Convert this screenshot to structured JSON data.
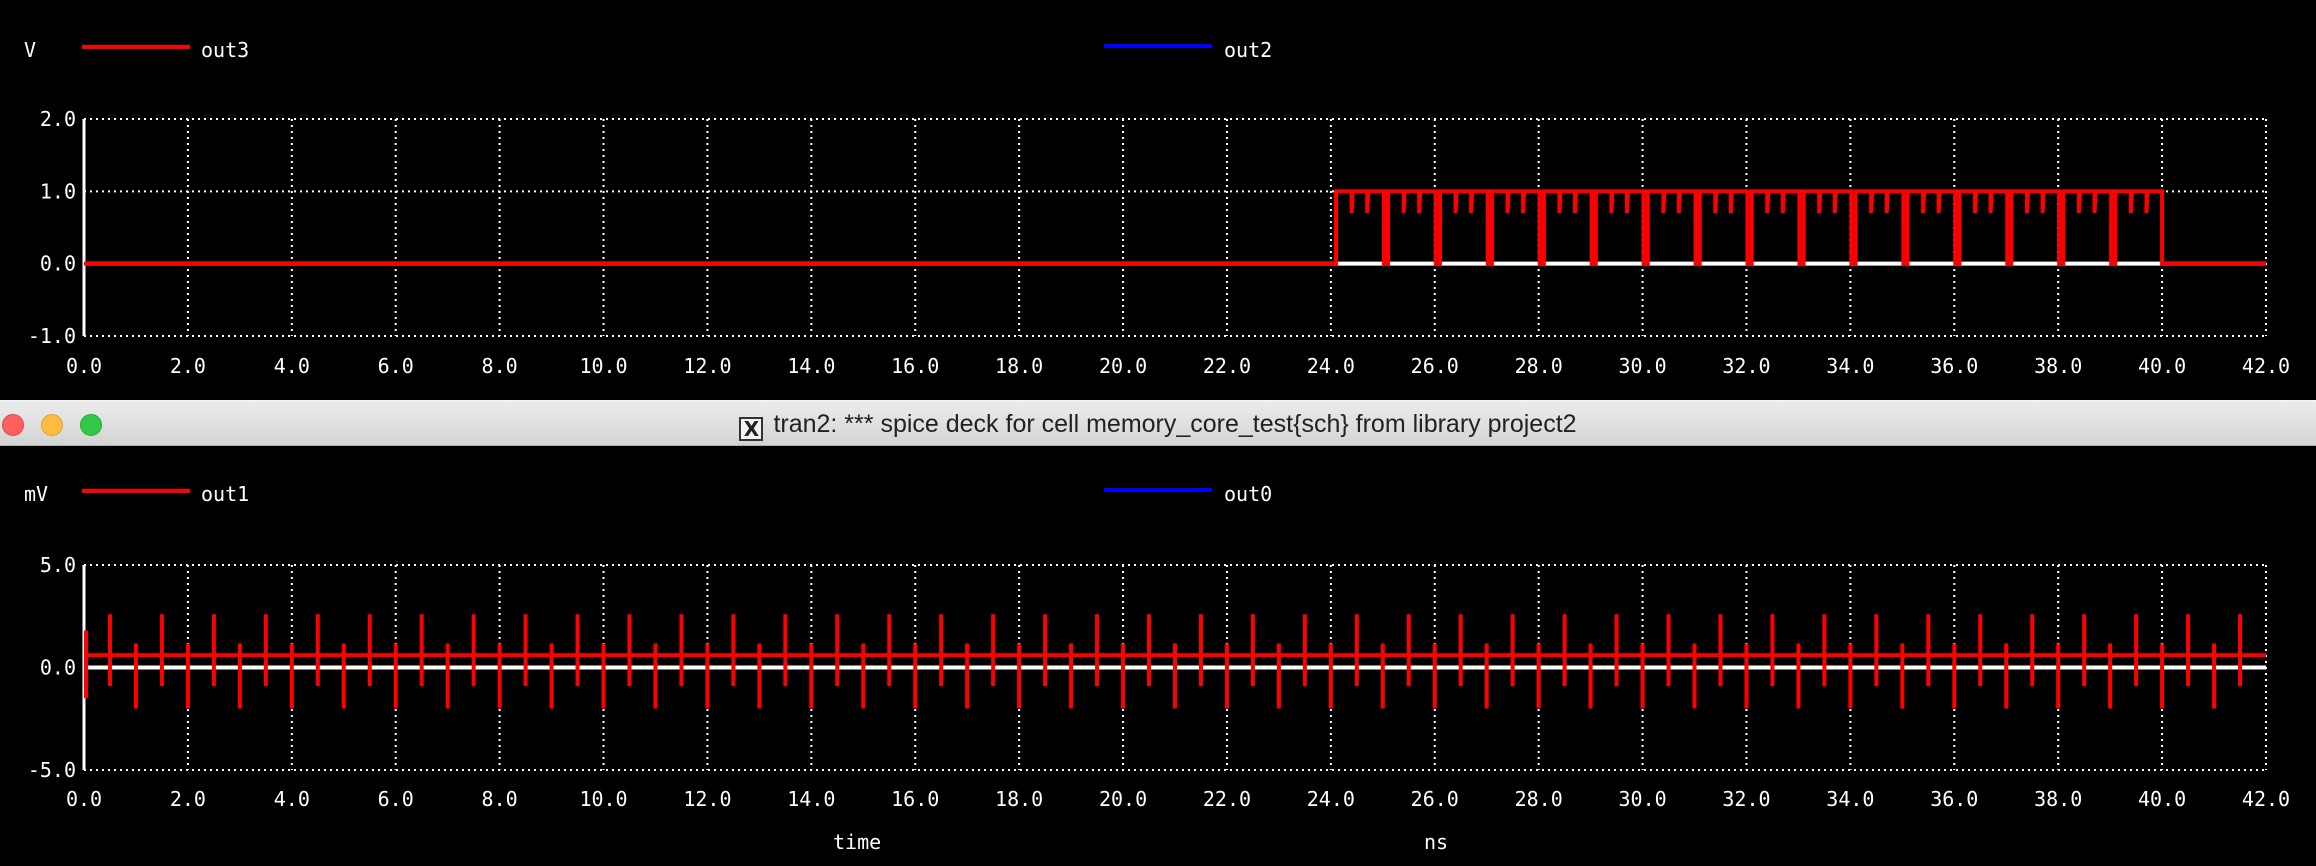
{
  "window": {
    "title": "tran2: *** spice deck for cell memory_core_test{sch} from library project2",
    "title_icon": "x11-icon"
  },
  "chart_data": [
    {
      "type": "line",
      "yunit": "V",
      "xlim": [
        0,
        42
      ],
      "ylim": [
        -1,
        2
      ],
      "xticks": [
        "0.0",
        "2.0",
        "4.0",
        "6.0",
        "8.0",
        "10.0",
        "12.0",
        "14.0",
        "16.0",
        "18.0",
        "20.0",
        "22.0",
        "24.0",
        "26.0",
        "28.0",
        "30.0",
        "32.0",
        "34.0",
        "36.0",
        "38.0",
        "40.0",
        "42.0"
      ],
      "yticks": [
        "-1.0",
        "0.0",
        "1.0",
        "2.0"
      ],
      "grid": true,
      "series": [
        {
          "name": "out3",
          "color": "#ff0000",
          "low": 0.0,
          "high": 1.0,
          "pulse_start": 24.1,
          "pulse_end": 40.0,
          "period": 1.0,
          "glitch_depth": 0.3
        },
        {
          "name": "out2",
          "color": "#0000ff",
          "baseline": 0.0
        }
      ]
    },
    {
      "type": "line",
      "yunit": "mV",
      "xlim": [
        0,
        42
      ],
      "ylim": [
        -5,
        5
      ],
      "xticks": [
        "0.0",
        "2.0",
        "4.0",
        "6.0",
        "8.0",
        "10.0",
        "12.0",
        "14.0",
        "16.0",
        "18.0",
        "20.0",
        "22.0",
        "24.0",
        "26.0",
        "28.0",
        "30.0",
        "32.0",
        "34.0",
        "36.0",
        "38.0",
        "40.0",
        "42.0"
      ],
      "yticks": [
        "-5.0",
        "0.0",
        "5.0"
      ],
      "grid": true,
      "xlabel": "time",
      "xunit": "ns",
      "series": [
        {
          "name": "out1",
          "color": "#ff0000",
          "baseline": 0.6,
          "spike_interval": 0.5,
          "spike_up": 2.6,
          "spike_down": -2.0
        },
        {
          "name": "out0",
          "color": "#0000ff",
          "baseline": 0.0
        }
      ]
    }
  ]
}
